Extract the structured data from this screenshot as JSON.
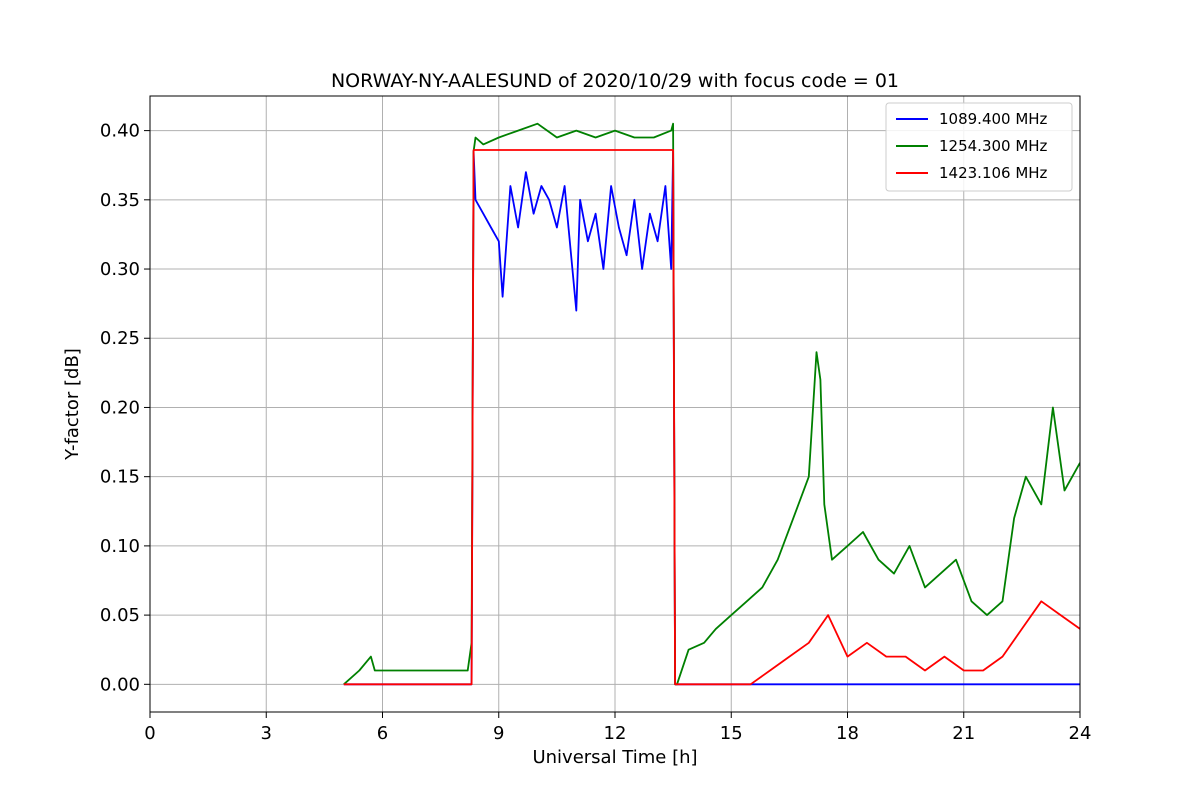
{
  "chart_data": {
    "type": "line",
    "title": "NORWAY-NY-AALESUND of 2020/10/29 with focus code = 01",
    "xlabel": "Universal Time [h]",
    "ylabel": "Y-factor [dB]",
    "xlim": [
      0,
      24
    ],
    "ylim": [
      -0.02,
      0.425
    ],
    "xticks": [
      0,
      3,
      6,
      9,
      12,
      15,
      18,
      21,
      24
    ],
    "yticks": [
      0.0,
      0.05,
      0.1,
      0.15,
      0.2,
      0.25,
      0.3,
      0.35,
      0.4
    ],
    "xtick_labels": [
      "0",
      "3",
      "6",
      "9",
      "12",
      "15",
      "18",
      "21",
      "24"
    ],
    "ytick_labels": [
      "0.00",
      "0.05",
      "0.10",
      "0.15",
      "0.20",
      "0.25",
      "0.30",
      "0.35",
      "0.40"
    ],
    "grid": true,
    "legend_position": "top-right",
    "series": [
      {
        "name": "1089.400 MHz",
        "color": "#0000ff",
        "x": [
          5.0,
          8.3,
          8.35,
          8.4,
          8.6,
          8.8,
          9.0,
          9.1,
          9.3,
          9.5,
          9.7,
          9.9,
          10.1,
          10.3,
          10.5,
          10.7,
          10.9,
          11.0,
          11.1,
          11.3,
          11.5,
          11.7,
          11.9,
          12.1,
          12.3,
          12.5,
          12.7,
          12.9,
          13.1,
          13.3,
          13.45,
          13.5,
          13.55,
          14.5,
          21.5,
          22.0,
          24.0
        ],
        "y": [
          0.0,
          0.0,
          0.385,
          0.35,
          0.34,
          0.33,
          0.32,
          0.28,
          0.36,
          0.33,
          0.37,
          0.34,
          0.36,
          0.35,
          0.33,
          0.36,
          0.3,
          0.27,
          0.35,
          0.32,
          0.34,
          0.3,
          0.36,
          0.33,
          0.31,
          0.35,
          0.3,
          0.34,
          0.32,
          0.36,
          0.3,
          0.385,
          0.0,
          0.0,
          0.0,
          0.0,
          0.0
        ]
      },
      {
        "name": "1254.300 MHz",
        "color": "#008000",
        "x": [
          5.0,
          5.4,
          5.7,
          5.8,
          8.2,
          8.3,
          8.35,
          8.4,
          8.6,
          9.0,
          9.5,
          10.0,
          10.5,
          11.0,
          11.5,
          12.0,
          12.5,
          13.0,
          13.45,
          13.5,
          13.55,
          13.6,
          13.9,
          14.3,
          14.6,
          15.0,
          15.4,
          15.8,
          16.2,
          16.6,
          17.0,
          17.2,
          17.3,
          17.4,
          17.6,
          18.0,
          18.4,
          18.8,
          19.2,
          19.6,
          20.0,
          20.4,
          20.8,
          21.2,
          21.6,
          22.0,
          22.3,
          22.6,
          23.0,
          23.3,
          23.6,
          24.0
        ],
        "y": [
          0.0,
          0.01,
          0.02,
          0.01,
          0.01,
          0.03,
          0.385,
          0.395,
          0.39,
          0.395,
          0.4,
          0.405,
          0.395,
          0.4,
          0.395,
          0.4,
          0.395,
          0.395,
          0.4,
          0.405,
          0.0,
          0.0,
          0.025,
          0.03,
          0.04,
          0.05,
          0.06,
          0.07,
          0.09,
          0.12,
          0.15,
          0.24,
          0.22,
          0.13,
          0.09,
          0.1,
          0.11,
          0.09,
          0.08,
          0.1,
          0.07,
          0.08,
          0.09,
          0.06,
          0.05,
          0.06,
          0.12,
          0.15,
          0.13,
          0.2,
          0.14,
          0.16
        ]
      },
      {
        "name": "1423.106 MHz",
        "color": "#ff0000",
        "x": [
          5.0,
          8.3,
          8.35,
          13.5,
          13.55,
          14.5,
          15.5,
          16.0,
          16.5,
          17.0,
          17.5,
          18.0,
          18.5,
          19.0,
          19.5,
          20.0,
          20.5,
          21.0,
          21.5,
          22.0,
          22.5,
          23.0,
          23.5,
          24.0
        ],
        "y": [
          0.0,
          0.0,
          0.386,
          0.386,
          0.0,
          0.0,
          0.0,
          0.01,
          0.02,
          0.03,
          0.05,
          0.02,
          0.03,
          0.02,
          0.02,
          0.01,
          0.02,
          0.01,
          0.01,
          0.02,
          0.04,
          0.06,
          0.05,
          0.04
        ]
      }
    ]
  }
}
